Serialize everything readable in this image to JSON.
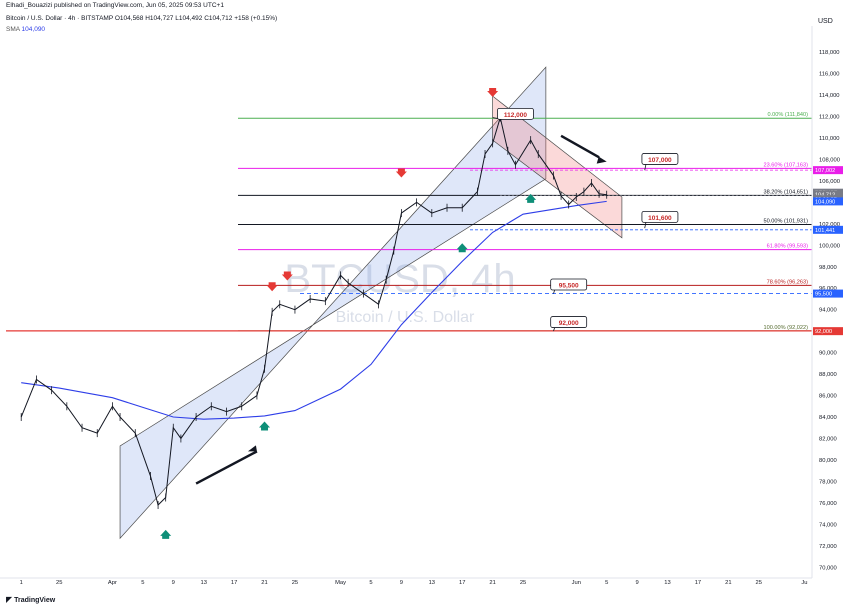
{
  "header": {
    "publisher": "Elhadi_Bouazizi published on TradingView.com, Jun 05, 2025 09:53 UTC+1",
    "symbol_line": "Bitcoin / U.S. Dollar · 4h · BITSTAMP",
    "ohlc": {
      "open": "O104,568",
      "high": "H104,727",
      "low": "L104,492",
      "close": "C104,712",
      "change": "+158 (+0.15%)"
    },
    "indicator": {
      "name": "SMA",
      "value": "104,090"
    }
  },
  "currency_label": "USD",
  "watermark": {
    "symbol": "BTCUSD, 4h",
    "name": "Bitcoin / U.S. Dollar"
  },
  "branding": "TradingView",
  "colors": {
    "up": "#131722",
    "down": "#131722",
    "sma": "#2e3ee8",
    "fib_0": "#4caf50",
    "fib_236": "#e91ee9",
    "fib_382": "#131722",
    "fib_50": "#131722",
    "fib_618": "#e91ee9",
    "fib_786": "#b71c1c",
    "fib_100": "#556b2f",
    "red_line": "#e53935",
    "channel_fill": "rgba(140,170,235,0.28)",
    "channel_down_fill": "rgba(240,120,120,0.28)",
    "arrow_red": "#e53935",
    "arrow_green": "#0e8f78",
    "blue_dash": "#2962ff",
    "magenta_dash": "#e91ee9"
  },
  "chart_data": {
    "type": "line",
    "title": "Bitcoin / U.S. Dollar · 4h · BITSTAMP",
    "ylabel": "USD",
    "ylim": [
      69000,
      119500
    ],
    "y_ticks": [
      70000,
      72000,
      74000,
      76000,
      78000,
      80000,
      82000,
      84000,
      86000,
      88000,
      90000,
      92000,
      94000,
      96000,
      98000,
      100000,
      102000,
      104000,
      106000,
      108000,
      110000,
      112000,
      114000,
      116000,
      118000
    ],
    "y_tick_labels": [
      "70,000",
      "72,000",
      "74,000",
      "76,000",
      "78,000",
      "80,000",
      "82,000",
      "84,000",
      "86,000",
      "88,000",
      "90,000",
      "92,000",
      "94,000",
      "96,000",
      "98,000",
      "100,000",
      "102,000",
      "104,000",
      "106,000",
      "108,000",
      "110,000",
      "112,000",
      "114,000",
      "116,000",
      "118,000"
    ],
    "x_dates": [
      "2025-03-20",
      "2025-03-25",
      "2025-04-01",
      "2025-04-05",
      "2025-04-09",
      "2025-04-13",
      "2025-04-17",
      "2025-04-21",
      "2025-04-25",
      "2025-05-01",
      "2025-05-05",
      "2025-05-09",
      "2025-05-13",
      "2025-05-17",
      "2025-05-21",
      "2025-05-25",
      "2025-06-01",
      "2025-06-05",
      "2025-06-09",
      "2025-06-13",
      "2025-06-17",
      "2025-06-21",
      "2025-06-25",
      "2025-07-01"
    ],
    "x_tick_labels": [
      "1",
      "25",
      "Apr",
      "5",
      "9",
      "13",
      "17",
      "21",
      "25",
      "May",
      "5",
      "9",
      "13",
      "17",
      "21",
      "25",
      "Jun",
      "5",
      "9",
      "13",
      "17",
      "21",
      "25",
      "Ju"
    ],
    "price_series": {
      "name": "BTCUSD",
      "x": [
        "2025-03-20",
        "2025-03-22",
        "2025-03-24",
        "2025-03-26",
        "2025-03-28",
        "2025-03-30",
        "2025-04-01",
        "2025-04-02",
        "2025-04-04",
        "2025-04-06",
        "2025-04-07",
        "2025-04-08",
        "2025-04-09",
        "2025-04-10",
        "2025-04-12",
        "2025-04-14",
        "2025-04-16",
        "2025-04-18",
        "2025-04-20",
        "2025-04-21",
        "2025-04-22",
        "2025-04-23",
        "2025-04-25",
        "2025-04-27",
        "2025-04-29",
        "2025-05-01",
        "2025-05-02",
        "2025-05-04",
        "2025-05-06",
        "2025-05-07",
        "2025-05-08",
        "2025-05-09",
        "2025-05-11",
        "2025-05-13",
        "2025-05-15",
        "2025-05-17",
        "2025-05-19",
        "2025-05-20",
        "2025-05-21",
        "2025-05-22",
        "2025-05-23",
        "2025-05-24",
        "2025-05-26",
        "2025-05-27",
        "2025-05-29",
        "2025-05-30",
        "2025-05-31",
        "2025-06-01",
        "2025-06-02",
        "2025-06-03",
        "2025-06-04",
        "2025-06-05"
      ],
      "values": [
        84000,
        87500,
        86500,
        85000,
        83000,
        82500,
        85000,
        84000,
        82500,
        78500,
        75800,
        76500,
        83000,
        82000,
        84000,
        85000,
        84500,
        85000,
        86000,
        88500,
        93800,
        94500,
        94000,
        95000,
        94800,
        97200,
        96500,
        95500,
        94500,
        96800,
        99500,
        103000,
        104000,
        103000,
        103500,
        103500,
        105000,
        108500,
        109500,
        111900,
        108800,
        107500,
        109800,
        108500,
        106500,
        104600,
        103800,
        104500,
        105000,
        105800,
        104800,
        104712
      ]
    },
    "sma_series": {
      "name": "SMA",
      "x": [
        "2025-03-20",
        "2025-03-25",
        "2025-04-01",
        "2025-04-05",
        "2025-04-09",
        "2025-04-13",
        "2025-04-17",
        "2025-04-21",
        "2025-04-25",
        "2025-05-01",
        "2025-05-05",
        "2025-05-09",
        "2025-05-13",
        "2025-05-17",
        "2025-05-21",
        "2025-05-25",
        "2025-06-01",
        "2025-06-05"
      ],
      "values": [
        87200,
        86700,
        85800,
        84900,
        84000,
        83800,
        83900,
        84100,
        84600,
        86600,
        88900,
        92600,
        95600,
        98500,
        101200,
        102900,
        103700,
        104090
      ]
    },
    "fib_levels": [
      {
        "label": "0.00% (111,840)",
        "value": 111840
      },
      {
        "label": "23.60% (107,163)",
        "value": 107163
      },
      {
        "label": "38.20% (104,651)",
        "value": 104651
      },
      {
        "label": "50.00% (101,931)",
        "value": 101931
      },
      {
        "label": "61.80% (99,593)",
        "value": 99593
      },
      {
        "label": "78.60% (96,263)",
        "value": 96263
      },
      {
        "label": "100.00% (92,022)",
        "value": 92022
      }
    ],
    "callouts": [
      "112,000",
      "107,000",
      "101,600",
      "95,500",
      "92,000"
    ],
    "callout_values": [
      112000,
      107000,
      101600,
      95500,
      92000
    ],
    "price_badges": [
      {
        "label": "107,002",
        "value": 107002,
        "kind": "magenta"
      },
      {
        "label": "BTCUSD",
        "value": 104900,
        "kind": "gray"
      },
      {
        "label": "104,712",
        "value": 104712,
        "kind": "gray"
      },
      {
        "label": "03:06:27",
        "value": 104300,
        "kind": "gray"
      },
      {
        "label": "104,090",
        "value": 104090,
        "kind": "blue"
      },
      {
        "label": "101,441",
        "value": 101441,
        "kind": "blue"
      },
      {
        "label": "95,500",
        "value": 95500,
        "kind": "blue"
      },
      {
        "label": "92,000",
        "value": 92000,
        "kind": "red"
      }
    ]
  }
}
